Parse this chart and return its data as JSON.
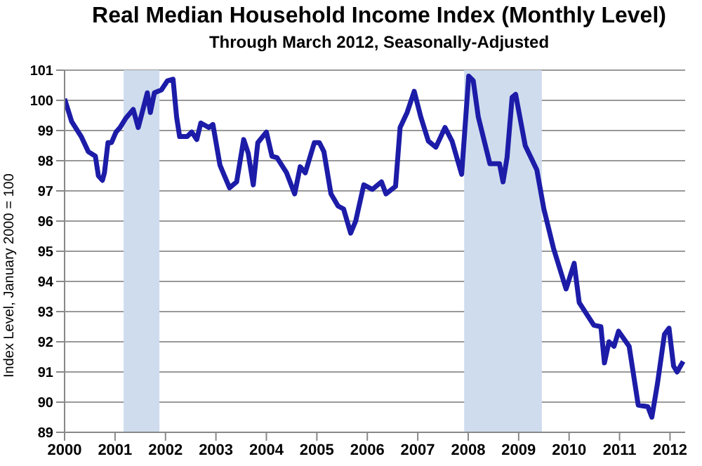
{
  "chart_data": {
    "type": "line",
    "title": "Real Median Household Income Index (Monthly Level)",
    "subtitle": "Through March 2012, Seasonally-Adjusted",
    "ylabel": "Index Level, January 2000 = 100",
    "x": [
      2000.0,
      2000.14,
      2000.33,
      2000.47,
      2000.61,
      2000.67,
      2000.75,
      2000.79,
      2000.86,
      2000.93,
      2001.02,
      2001.1,
      2001.21,
      2001.36,
      2001.46,
      2001.64,
      2001.7,
      2001.78,
      2001.92,
      2002.04,
      2002.15,
      2002.22,
      2002.28,
      2002.43,
      2002.52,
      2002.62,
      2002.7,
      2002.86,
      2002.94,
      2003.08,
      2003.27,
      2003.41,
      2003.55,
      2003.64,
      2003.74,
      2003.83,
      2004.0,
      2004.11,
      2004.21,
      2004.4,
      2004.56,
      2004.67,
      2004.77,
      2004.95,
      2005.05,
      2005.14,
      2005.28,
      2005.42,
      2005.53,
      2005.67,
      2005.77,
      2005.93,
      2006.1,
      2006.28,
      2006.37,
      2006.56,
      2006.65,
      2006.79,
      2006.93,
      2007.06,
      2007.21,
      2007.36,
      2007.54,
      2007.68,
      2007.87,
      2008.01,
      2008.1,
      2008.2,
      2008.43,
      2008.62,
      2008.69,
      2008.77,
      2008.87,
      2008.94,
      2009.13,
      2009.36,
      2009.5,
      2009.69,
      2009.94,
      2010.1,
      2010.2,
      2010.49,
      2010.63,
      2010.7,
      2010.79,
      2010.89,
      2010.98,
      2011.19,
      2011.37,
      2011.56,
      2011.64,
      2011.75,
      2011.89,
      2011.98,
      2012.07,
      2012.14,
      2012.26
    ],
    "series": [
      {
        "color": "#1c1ca8",
        "values": [
          100.05,
          99.3,
          98.8,
          98.3,
          98.15,
          97.5,
          97.35,
          97.6,
          98.6,
          98.6,
          98.95,
          99.1,
          99.4,
          99.7,
          99.1,
          100.25,
          99.6,
          100.25,
          100.35,
          100.65,
          100.7,
          99.45,
          98.8,
          98.8,
          98.95,
          98.7,
          99.25,
          99.1,
          99.2,
          97.85,
          97.1,
          97.3,
          98.7,
          98.25,
          97.2,
          98.6,
          98.95,
          98.15,
          98.1,
          97.6,
          96.9,
          97.8,
          97.6,
          98.6,
          98.6,
          98.3,
          96.9,
          96.5,
          96.4,
          95.6,
          96.0,
          97.2,
          97.05,
          97.3,
          96.9,
          97.15,
          99.1,
          99.6,
          100.3,
          99.45,
          98.65,
          98.45,
          99.1,
          98.65,
          97.55,
          100.8,
          100.65,
          99.45,
          97.9,
          97.9,
          97.3,
          98.1,
          100.1,
          100.2,
          98.5,
          97.7,
          96.4,
          95.1,
          93.75,
          94.6,
          93.3,
          92.55,
          92.5,
          91.3,
          92.0,
          91.85,
          92.35,
          91.85,
          89.9,
          89.85,
          89.5,
          90.6,
          92.25,
          92.45,
          91.2,
          91.0,
          91.35
        ]
      }
    ],
    "xlim": [
      2000,
      2012.3
    ],
    "xticks": [
      2000,
      2001,
      2002,
      2003,
      2004,
      2005,
      2006,
      2007,
      2008,
      2009,
      2010,
      2011,
      2012
    ],
    "ylim": [
      89,
      101
    ],
    "yticks": [
      89,
      90,
      91,
      92,
      93,
      94,
      95,
      96,
      97,
      98,
      99,
      100,
      101
    ],
    "bands": [
      {
        "axis": "x",
        "from": 2001.17,
        "to": 2001.88,
        "color": "#cfdcee"
      },
      {
        "axis": "x",
        "from": 2007.92,
        "to": 2009.46,
        "color": "#cfdcee"
      }
    ],
    "grid": "y",
    "legend": false,
    "marker": "none",
    "line_style": "solid"
  }
}
